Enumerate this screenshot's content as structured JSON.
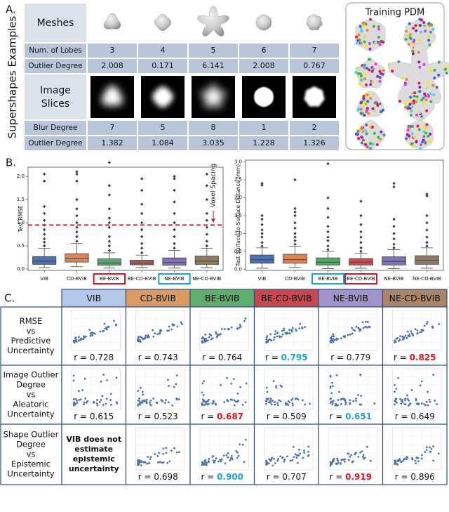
{
  "panel_a": {
    "label": "A.",
    "side_title": "Supershapes Examples",
    "meshes_label": "Meshes",
    "lobes_label": "Num. of Lobes",
    "lobes": [
      3,
      4,
      5,
      6,
      7
    ],
    "shape_outlier_label": "Outlier Degree",
    "shape_outlier": [
      2.008,
      0.171,
      6.141,
      2.008,
      0.767
    ],
    "slices_label": [
      "Image",
      "Slices"
    ],
    "blur_label": "Blur Degree",
    "blur": [
      7,
      5,
      8,
      1,
      2
    ],
    "image_outlier_label": "Outlier Degree",
    "image_outlier": [
      1.382,
      1.084,
      3.035,
      1.228,
      1.326
    ],
    "pdm_title": "Training PDM"
  },
  "panel_b": {
    "label": "B.",
    "charts": [
      {
        "type": "box",
        "ylabel": "Test RMSE",
        "categories": [
          "VIB",
          "CD-BVIB",
          "BE-BVIB",
          "BE-CD-BVIB",
          "NE-BVIB",
          "NE-CD-BVIB"
        ],
        "colors": [
          "#4c72b0",
          "#dd8452",
          "#55a868",
          "#c44e52",
          "#8172b3",
          "#937860"
        ],
        "ylim": [
          -0.03,
          2.2
        ],
        "yticks": [
          {
            "value": 0,
            "label": "0.0"
          },
          {
            "value": 0.5,
            "label": "0.5"
          },
          {
            "value": 1,
            "label": "1.0"
          },
          {
            "value": 1.5,
            "label": "1.5"
          },
          {
            "value": 2,
            "label": "2.0"
          }
        ],
        "boxes": [
          {
            "whislo": 0.03,
            "q1": 0.1,
            "median": 0.17,
            "q3": 0.27,
            "whishi": 0.45,
            "outliers": [
              0.5,
              0.58,
              0.65,
              0.75,
              0.85,
              0.95,
              1.05,
              1.2,
              1.35,
              1.9,
              2.05
            ]
          },
          {
            "whislo": 0.05,
            "q1": 0.15,
            "median": 0.22,
            "q3": 0.33,
            "whishi": 0.55,
            "outliers": [
              0.6,
              0.7,
              0.8,
              0.9,
              1.0,
              1.15,
              1.3,
              1.5,
              1.9,
              2.05,
              2.1
            ]
          },
          {
            "whislo": 0.02,
            "q1": 0.08,
            "median": 0.13,
            "q3": 0.22,
            "whishi": 0.35,
            "outliers": [
              0.4,
              0.5,
              0.6,
              0.7,
              0.9,
              1.0,
              1.1,
              1.3,
              1.6,
              1.8,
              2.3
            ]
          },
          {
            "whislo": 0.03,
            "q1": 0.09,
            "median": 0.13,
            "q3": 0.19,
            "whishi": 0.3,
            "outliers": [
              0.35,
              0.45,
              0.55,
              0.7,
              0.85,
              1.0,
              1.2,
              1.4,
              1.7,
              1.95
            ]
          },
          {
            "whislo": 0.02,
            "q1": 0.08,
            "median": 0.14,
            "q3": 0.24,
            "whishi": 0.4,
            "outliers": [
              0.45,
              0.55,
              0.7,
              0.85,
              1.0,
              1.2,
              1.45,
              1.7,
              1.95,
              2.0
            ]
          },
          {
            "whislo": 0.03,
            "q1": 0.1,
            "median": 0.17,
            "q3": 0.28,
            "whishi": 0.45,
            "outliers": [
              0.5,
              0.6,
              0.75,
              0.9,
              1.05,
              1.2,
              1.5,
              1.8,
              2.05
            ]
          }
        ],
        "annotation": {
          "text": "Voxel Spacing",
          "value": 0.95,
          "color": "#d62728"
        },
        "highlights": [
          {
            "index": 2,
            "color": "#e0141e"
          },
          {
            "index": 4,
            "color": "#1ba1e2"
          }
        ]
      },
      {
        "type": "box",
        "ylabel": "Test Surface-to-Surface Distance (mm)",
        "categories": [
          "VIB",
          "CD-BVIB",
          "BE-BVIB",
          "BE-CD-BVIB",
          "NE-BVIB",
          "NE-CD-BVIB"
        ],
        "colors": [
          "#4c72b0",
          "#dd8452",
          "#55a868",
          "#c44e52",
          "#8172b3",
          "#937860"
        ],
        "ylim": [
          -0.03,
          3.05
        ],
        "yticks": [
          {
            "value": 0,
            "label": "0.0"
          },
          {
            "value": 0.5,
            "label": "0.5"
          },
          {
            "value": 1,
            "label": "1.0"
          },
          {
            "value": 1.5,
            "label": "1.5"
          },
          {
            "value": 2,
            "label": "2.0"
          },
          {
            "value": 2.5,
            "label": "2.5"
          },
          {
            "value": 3,
            "label": "3.0"
          }
        ],
        "boxes": [
          {
            "whislo": 0.03,
            "q1": 0.17,
            "median": 0.27,
            "q3": 0.4,
            "whishi": 0.6,
            "outliers": [
              0.65,
              0.75,
              0.9,
              1.0,
              1.1,
              1.25,
              1.4,
              1.5,
              2.35,
              2.4
            ]
          },
          {
            "whislo": 0.05,
            "q1": 0.17,
            "median": 0.27,
            "q3": 0.42,
            "whishi": 0.65,
            "outliers": [
              0.7,
              0.8,
              0.9,
              1.0,
              1.15,
              1.3,
              1.5,
              1.6,
              1.7,
              2.5
            ]
          },
          {
            "whislo": 0.02,
            "q1": 0.12,
            "median": 0.2,
            "q3": 0.32,
            "whishi": 0.5,
            "outliers": [
              0.55,
              0.65,
              0.8,
              0.9,
              1.05,
              1.2,
              1.45,
              1.7,
              2.0,
              2.95
            ]
          },
          {
            "whislo": 0.03,
            "q1": 0.12,
            "median": 0.2,
            "q3": 0.3,
            "whishi": 0.45,
            "outliers": [
              0.5,
              0.6,
              0.75,
              0.9,
              1.05,
              1.25,
              1.5,
              1.9
            ]
          },
          {
            "whislo": 0.02,
            "q1": 0.12,
            "median": 0.22,
            "q3": 0.35,
            "whishi": 0.55,
            "outliers": [
              0.6,
              0.7,
              0.85,
              1.0,
              1.2,
              1.4,
              2.3,
              2.4
            ]
          },
          {
            "whislo": 0.03,
            "q1": 0.14,
            "median": 0.25,
            "q3": 0.38,
            "whishi": 0.6,
            "outliers": [
              0.65,
              0.75,
              0.9,
              1.1,
              1.3,
              1.5,
              2.05,
              2.1
            ]
          }
        ],
        "highlights": [
          {
            "index": 2,
            "color": "#1ba1e2"
          },
          {
            "index": 3,
            "color": "#e0141e"
          }
        ]
      }
    ]
  },
  "panel_c": {
    "label": "C.",
    "r_prefix": "r = ",
    "headers": [
      "VIB",
      "CD-BVIB",
      "BE-BVIB",
      "BE-CD-BVIB",
      "NE-BVIB",
      "NE-CD-BVIB"
    ],
    "header_colors": [
      "#b4c7e7",
      "#d99a63",
      "#5fae6e",
      "#c9474e",
      "#a192c9",
      "#a88568"
    ],
    "rows": [
      {
        "label": [
          "RMSE",
          "vs",
          "Predictive",
          "Uncertainty"
        ],
        "cells": [
          {
            "r": "0.728"
          },
          {
            "r": "0.743"
          },
          {
            "r": "0.764"
          },
          {
            "r": "0.795",
            "color": "#1ba1e2"
          },
          {
            "r": "0.779"
          },
          {
            "r": "0.825",
            "color": "#e0141e"
          }
        ]
      },
      {
        "label": [
          "Image Outlier",
          "Degree",
          "vs",
          "Aleatoric",
          "Uncertainty"
        ],
        "cells": [
          {
            "r": "0.615"
          },
          {
            "r": "0.523"
          },
          {
            "r": "0.687",
            "color": "#e0141e"
          },
          {
            "r": "0.509"
          },
          {
            "r": "0.651",
            "color": "#1ba1e2"
          },
          {
            "r": "0.649"
          }
        ]
      },
      {
        "label": [
          "Shape Outlier",
          "Degree",
          "vs",
          "Epistemic",
          "Uncertainty"
        ],
        "cells": [
          {
            "note": [
              "VIB does not",
              "estimate",
              "epistemic",
              "uncertainty"
            ]
          },
          {
            "r": "0.698"
          },
          {
            "r": "0.900",
            "color": "#1ba1e2"
          },
          {
            "r": "0.707"
          },
          {
            "r": "0.919",
            "color": "#e0141e"
          },
          {
            "r": "0.896"
          }
        ]
      }
    ]
  }
}
